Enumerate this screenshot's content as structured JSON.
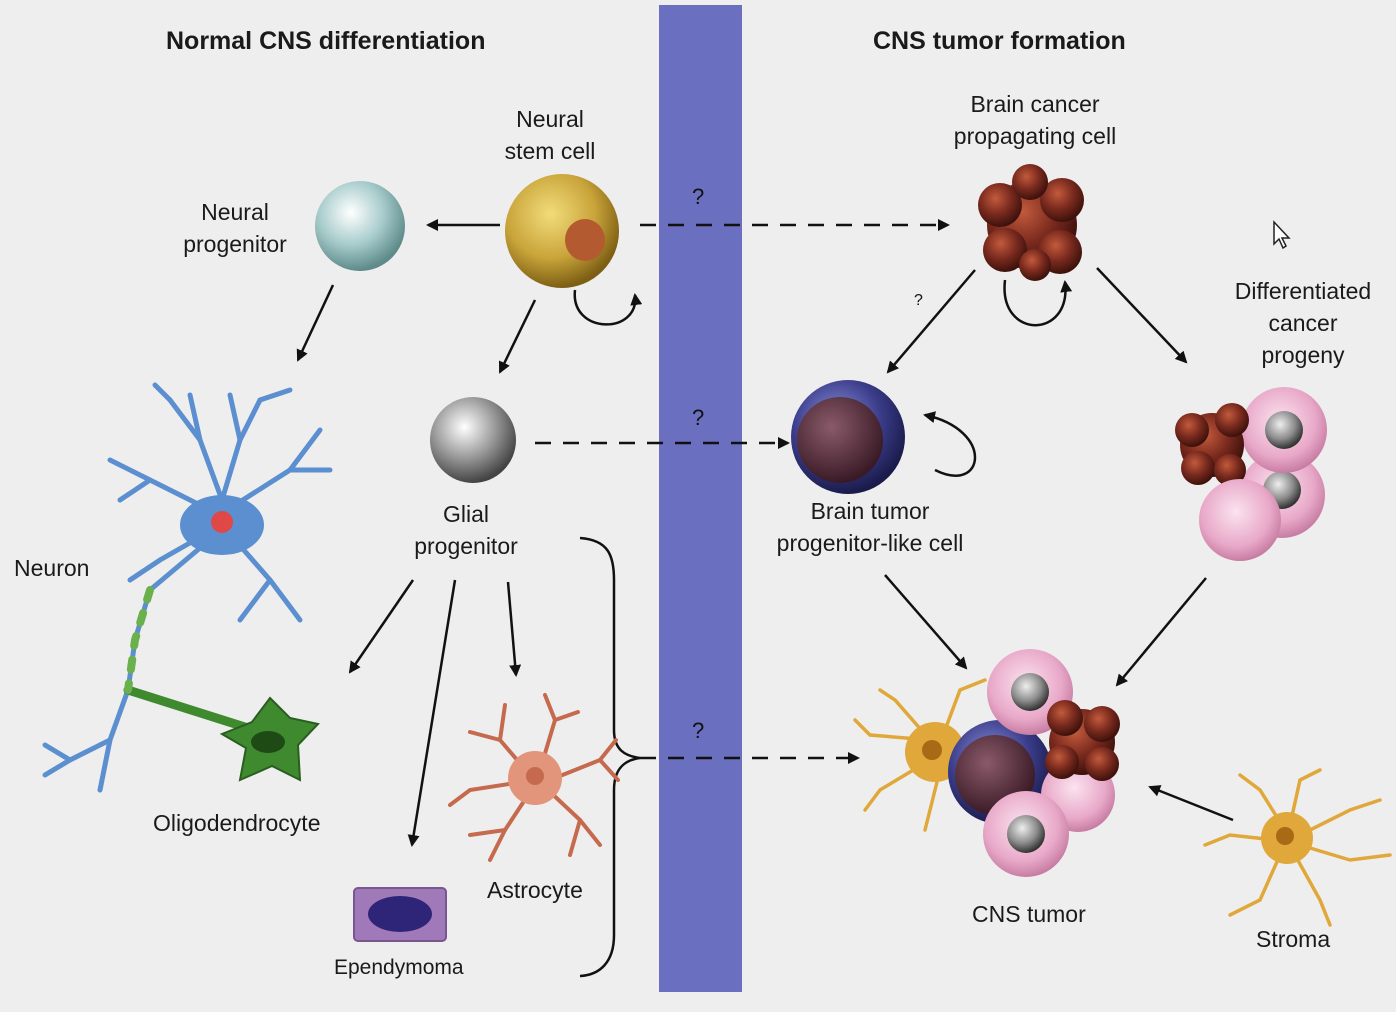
{
  "headings": {
    "left": "Normal CNS differentiation",
    "right": "CNS tumor formation"
  },
  "labels": {
    "neural_stem_cell": "Neural\nstem cell",
    "neural_progenitor": "Neural\nprogenitor",
    "glial_progenitor": "Glial\nprogenitor",
    "neuron": "Neuron",
    "oligodendrocyte": "Oligodendrocyte",
    "astrocyte": "Astrocyte",
    "ependymoma": "Ependymoma",
    "brain_cancer_propagating_cell": "Brain cancer\npropagating cell",
    "differentiated_cancer_progeny": "Differentiated\ncancer\nprogeny",
    "brain_tumor_progenitor_like_cell": "Brain tumor\nprogenitor-like cell",
    "cns_tumor": "CNS tumor",
    "stroma": "Stroma"
  },
  "question_marks": [
    "?",
    "?",
    "?",
    "?"
  ],
  "colors": {
    "background": "#eeeeee",
    "divider": "#6a6fbf",
    "stem_cell": "#c9a43a",
    "neural_progenitor": "#a8cccc",
    "glial_progenitor": "#9a9a9a",
    "neuron": "#5b8fd0",
    "oligodendrocyte": "#3f8a2f",
    "astrocyte": "#e2957a",
    "ependymoma": "#a07ab8",
    "cancer_cell": "#7a2a1e",
    "progenitor_like_cell": "#3a3c8a",
    "pink_progeny": "#e8a8c8",
    "stroma": "#e0a83a"
  }
}
